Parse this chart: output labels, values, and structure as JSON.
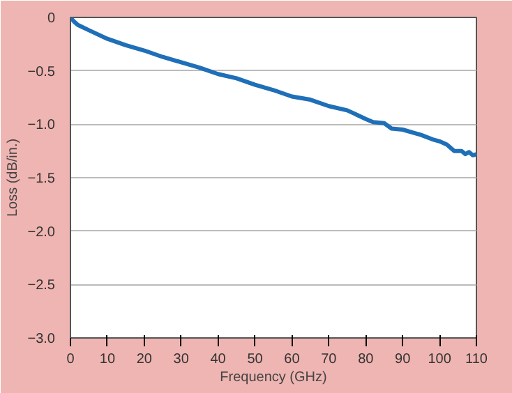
{
  "chart_data": {
    "type": "line",
    "xlabel": "Frequency (GHz)",
    "ylabel": "Loss (dB/in.)",
    "x": [
      0,
      1,
      2,
      5,
      10,
      15,
      20,
      25,
      30,
      35,
      40,
      45,
      50,
      55,
      60,
      65,
      70,
      75,
      80,
      82,
      85,
      87,
      90,
      93,
      95,
      98,
      100,
      102,
      104,
      106,
      107,
      108,
      109,
      110
    ],
    "series": [
      {
        "color": "#1f6fb8",
        "values": [
          0,
          -0.04,
          -0.07,
          -0.12,
          -0.2,
          -0.26,
          -0.31,
          -0.37,
          -0.42,
          -0.47,
          -0.53,
          -0.57,
          -0.63,
          -0.68,
          -0.74,
          -0.77,
          -0.83,
          -0.87,
          -0.95,
          -0.98,
          -0.99,
          -1.04,
          -1.05,
          -1.08,
          -1.1,
          -1.14,
          -1.16,
          -1.19,
          -1.25,
          -1.25,
          -1.28,
          -1.26,
          -1.29,
          -1.28
        ]
      }
    ],
    "xlim": [
      0,
      110
    ],
    "ylim": [
      -3,
      0
    ],
    "xticks": [
      0,
      10,
      20,
      30,
      40,
      50,
      60,
      70,
      80,
      90,
      100,
      110
    ],
    "yticks": [
      {
        "value": 0,
        "label": "0"
      },
      {
        "value": -0.5,
        "label": "−0.5"
      },
      {
        "value": -1,
        "label": "−1.0"
      },
      {
        "value": -1.5,
        "label": "−1.5"
      },
      {
        "value": -2,
        "label": "−2.0"
      },
      {
        "value": -2.5,
        "label": "−2.5"
      },
      {
        "value": -3,
        "label": "−3.0"
      }
    ],
    "grid": "y",
    "line_style": "solid",
    "marker": "none"
  }
}
